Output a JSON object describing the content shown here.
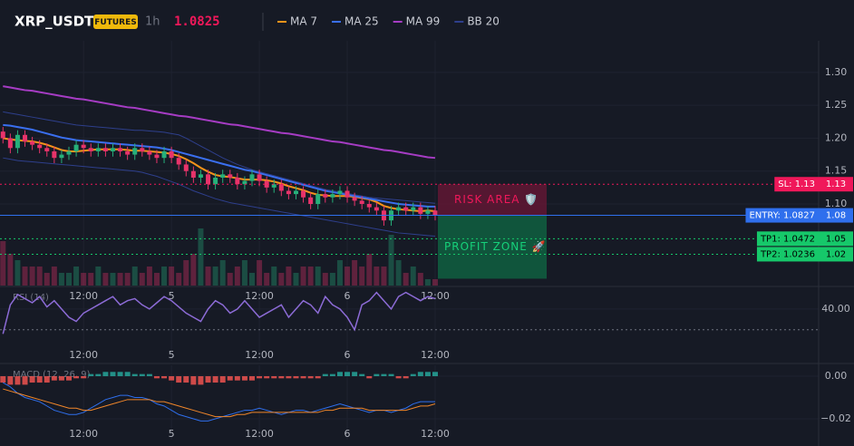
{
  "chart_data": [
    {
      "type": "candlestick",
      "title": "XRP_USDT",
      "badge": "FUTURES",
      "interval": "1h",
      "last_price": "1.0825",
      "categories": [
        null,
        null,
        null,
        null,
        null,
        null,
        null,
        null,
        null,
        null,
        null,
        "12:00",
        null,
        null,
        null,
        null,
        null,
        null,
        null,
        null,
        null,
        null,
        null,
        "5",
        null,
        null,
        null,
        null,
        null,
        null,
        null,
        null,
        null,
        null,
        null,
        "12:00",
        null,
        null,
        null,
        null,
        null,
        null,
        null,
        null,
        null,
        null,
        null,
        "6",
        null,
        null,
        null,
        null,
        null,
        null,
        null,
        null,
        null,
        null,
        null,
        "12:00"
      ],
      "open": [
        1.21,
        1.2,
        1.185,
        1.205,
        1.195,
        1.19,
        1.185,
        1.18,
        1.17,
        1.175,
        1.18,
        1.19,
        1.185,
        1.18,
        1.185,
        1.18,
        1.185,
        1.18,
        1.175,
        1.185,
        1.18,
        1.175,
        1.17,
        1.18,
        1.17,
        1.16,
        1.15,
        1.14,
        1.145,
        1.13,
        1.14,
        1.145,
        1.14,
        1.13,
        1.135,
        1.145,
        1.135,
        1.125,
        1.13,
        1.12,
        1.115,
        1.12,
        1.11,
        1.1,
        1.115,
        1.11,
        1.115,
        1.12,
        1.11,
        1.105,
        1.1,
        1.095,
        1.09,
        1.075,
        1.09,
        1.095,
        1.09,
        1.095,
        1.085,
        1.09
      ],
      "high": [
        1.217,
        1.207,
        1.212,
        1.212,
        1.202,
        1.197,
        1.192,
        1.187,
        1.182,
        1.187,
        1.197,
        1.197,
        1.192,
        1.192,
        1.192,
        1.192,
        1.192,
        1.187,
        1.192,
        1.192,
        1.187,
        1.182,
        1.187,
        1.187,
        1.177,
        1.167,
        1.157,
        1.152,
        1.152,
        1.147,
        1.152,
        1.152,
        1.147,
        1.142,
        1.152,
        1.152,
        1.142,
        1.137,
        1.137,
        1.127,
        1.127,
        1.127,
        1.117,
        1.122,
        1.122,
        1.122,
        1.127,
        1.127,
        1.117,
        1.112,
        1.107,
        1.102,
        1.097,
        1.097,
        1.102,
        1.102,
        1.102,
        1.102,
        1.097,
        1.097
      ],
      "low": [
        1.192,
        1.177,
        1.177,
        1.187,
        1.182,
        1.177,
        1.172,
        1.162,
        1.162,
        1.167,
        1.172,
        1.177,
        1.172,
        1.172,
        1.172,
        1.172,
        1.172,
        1.167,
        1.167,
        1.172,
        1.167,
        1.162,
        1.162,
        1.162,
        1.152,
        1.142,
        1.132,
        1.132,
        1.122,
        1.122,
        1.132,
        1.132,
        1.122,
        1.122,
        1.127,
        1.127,
        1.117,
        1.117,
        1.112,
        1.107,
        1.107,
        1.102,
        1.092,
        1.092,
        1.102,
        1.102,
        1.107,
        1.102,
        1.097,
        1.092,
        1.087,
        1.082,
        1.067,
        1.067,
        1.082,
        1.082,
        1.082,
        1.077,
        1.077,
        1.075
      ],
      "close": [
        1.2,
        1.185,
        1.205,
        1.195,
        1.19,
        1.185,
        1.18,
        1.17,
        1.175,
        1.18,
        1.19,
        1.185,
        1.18,
        1.185,
        1.18,
        1.185,
        1.18,
        1.175,
        1.185,
        1.18,
        1.175,
        1.17,
        1.18,
        1.17,
        1.16,
        1.15,
        1.14,
        1.145,
        1.13,
        1.14,
        1.145,
        1.14,
        1.13,
        1.135,
        1.145,
        1.135,
        1.125,
        1.13,
        1.12,
        1.115,
        1.12,
        1.11,
        1.1,
        1.115,
        1.11,
        1.115,
        1.12,
        1.11,
        1.105,
        1.1,
        1.095,
        1.09,
        1.075,
        1.09,
        1.095,
        1.09,
        1.095,
        1.085,
        1.09,
        1.0825
      ],
      "up_color": "#26b07a",
      "down_color": "#e8336a",
      "volume": [
        7,
        5,
        4,
        3,
        3,
        3,
        2,
        3,
        2,
        2,
        3,
        2,
        2,
        3,
        2,
        2,
        2,
        2,
        3,
        2,
        3,
        2,
        3,
        3,
        2,
        4,
        5,
        9,
        3,
        3,
        4,
        2,
        3,
        4,
        2,
        4,
        2,
        3,
        2,
        3,
        2,
        3,
        3,
        3,
        2,
        2,
        4,
        3,
        4,
        3,
        5,
        3,
        3,
        8,
        4,
        2,
        3,
        2,
        1,
        1
      ],
      "vlim": [
        0,
        10
      ],
      "series": [
        {
          "name": "MA 7",
          "color": "#f7931a",
          "values": [
            1.2,
            1.198,
            1.197,
            1.196,
            1.195,
            1.193,
            1.19,
            1.186,
            1.182,
            1.18,
            1.18,
            1.181,
            1.182,
            1.183,
            1.183,
            1.183,
            1.183,
            1.182,
            1.181,
            1.181,
            1.18,
            1.179,
            1.178,
            1.176,
            1.173,
            1.168,
            1.162,
            1.155,
            1.149,
            1.144,
            1.142,
            1.141,
            1.139,
            1.137,
            1.137,
            1.137,
            1.136,
            1.134,
            1.131,
            1.127,
            1.124,
            1.121,
            1.117,
            1.114,
            1.113,
            1.112,
            1.112,
            1.112,
            1.111,
            1.109,
            1.107,
            1.103,
            1.097,
            1.094,
            1.092,
            1.091,
            1.09,
            1.089,
            1.09,
            1.089
          ]
        },
        {
          "name": "MA 25",
          "color": "#3a6ff0",
          "values": [
            1.22,
            1.219,
            1.217,
            1.215,
            1.213,
            1.21,
            1.207,
            1.204,
            1.201,
            1.199,
            1.197,
            1.196,
            1.195,
            1.194,
            1.193,
            1.192,
            1.191,
            1.19,
            1.189,
            1.188,
            1.187,
            1.186,
            1.184,
            1.182,
            1.179,
            1.176,
            1.173,
            1.17,
            1.167,
            1.164,
            1.161,
            1.158,
            1.155,
            1.152,
            1.15,
            1.147,
            1.144,
            1.141,
            1.138,
            1.135,
            1.132,
            1.129,
            1.126,
            1.123,
            1.12,
            1.118,
            1.116,
            1.114,
            1.112,
            1.11,
            1.108,
            1.106,
            1.104,
            1.102,
            1.1,
            1.099,
            1.098,
            1.097,
            1.096,
            1.096
          ]
        },
        {
          "name": "MA 99",
          "color": "#a63cc4",
          "values": [
            1.279,
            1.277,
            1.275,
            1.273,
            1.272,
            1.27,
            1.268,
            1.266,
            1.264,
            1.262,
            1.26,
            1.259,
            1.257,
            1.255,
            1.253,
            1.251,
            1.249,
            1.247,
            1.246,
            1.244,
            1.242,
            1.24,
            1.238,
            1.236,
            1.234,
            1.233,
            1.231,
            1.229,
            1.227,
            1.225,
            1.223,
            1.221,
            1.22,
            1.218,
            1.216,
            1.214,
            1.212,
            1.21,
            1.208,
            1.207,
            1.205,
            1.203,
            1.201,
            1.199,
            1.197,
            1.195,
            1.194,
            1.192,
            1.19,
            1.188,
            1.186,
            1.184,
            1.182,
            1.181,
            1.179,
            1.177,
            1.175,
            1.173,
            1.171,
            1.17
          ]
        },
        {
          "name": "BB 20",
          "color": "#2e3f8c",
          "values": [
            1.24,
            1.238,
            1.236,
            1.234,
            1.232,
            1.23,
            1.228,
            1.226,
            1.224,
            1.222,
            1.22,
            1.219,
            1.218,
            1.217,
            1.216,
            1.215,
            1.214,
            1.213,
            1.212,
            1.212,
            1.211,
            1.21,
            1.209,
            1.207,
            1.205,
            1.2,
            1.194,
            1.188,
            1.182,
            1.176,
            1.17,
            1.165,
            1.16,
            1.156,
            1.152,
            1.149,
            1.146,
            1.143,
            1.14,
            1.137,
            1.134,
            1.131,
            1.128,
            1.125,
            1.122,
            1.12,
            1.118,
            1.116,
            1.114,
            1.112,
            1.11,
            1.109,
            1.108,
            1.107,
            1.106,
            1.105,
            1.104,
            1.103,
            1.102,
            1.101
          ],
          "lower": [
            1.17,
            1.168,
            1.166,
            1.165,
            1.164,
            1.163,
            1.162,
            1.161,
            1.16,
            1.159,
            1.158,
            1.157,
            1.156,
            1.155,
            1.154,
            1.153,
            1.152,
            1.151,
            1.15,
            1.148,
            1.145,
            1.142,
            1.138,
            1.134,
            1.13,
            1.125,
            1.12,
            1.116,
            1.112,
            1.108,
            1.105,
            1.102,
            1.1,
            1.098,
            1.096,
            1.094,
            1.092,
            1.09,
            1.088,
            1.086,
            1.084,
            1.082,
            1.08,
            1.078,
            1.076,
            1.074,
            1.072,
            1.07,
            1.068,
            1.066,
            1.064,
            1.062,
            1.06,
            1.058,
            1.056,
            1.055,
            1.054,
            1.053,
            1.052,
            1.051
          ]
        }
      ],
      "ylim": [
        0.976,
        1.348
      ],
      "yticks": [
        {
          "value": 1.1,
          "label": "1.10"
        },
        {
          "value": 1.15,
          "label": "1.15"
        },
        {
          "value": 1.2,
          "label": "1.20"
        },
        {
          "value": 1.25,
          "label": "1.25"
        },
        {
          "value": 1.3,
          "label": "1.30"
        }
      ],
      "stop_loss": {
        "value": 1.13,
        "label": "SL: 1.13",
        "axis_label": "1.13",
        "color": "#f0185a"
      },
      "entry": {
        "value": 1.0827,
        "label": "ENTRY: 1.0827",
        "axis_label": "1.08",
        "color": "#2f6fed"
      },
      "take_profits": [
        {
          "value": 1.0472,
          "label": "TP1: 1.0472",
          "axis_label": "1.05",
          "color": "#16c86a"
        },
        {
          "value": 1.0236,
          "label": "TP2: 1.0236",
          "axis_label": "1.02",
          "color": "#16c86a"
        }
      ],
      "risk_area": "RISK AREA 🛡️",
      "profit_zone": "PROFIT ZONE 🚀"
    },
    {
      "type": "line",
      "title": "RSI (14)",
      "categories": [
        null,
        null,
        null,
        null,
        null,
        null,
        null,
        null,
        null,
        null,
        null,
        "12:00",
        null,
        null,
        null,
        null,
        null,
        null,
        null,
        null,
        null,
        null,
        null,
        "5",
        null,
        null,
        null,
        null,
        null,
        null,
        null,
        null,
        null,
        null,
        null,
        "12:00",
        null,
        null,
        null,
        null,
        null,
        null,
        null,
        null,
        null,
        null,
        null,
        "6",
        null,
        null,
        null,
        null,
        null,
        null,
        null,
        null,
        null,
        null,
        null,
        "12:00"
      ],
      "values": [
        28,
        42,
        47,
        45,
        43,
        46,
        41,
        44,
        40,
        36,
        34,
        38,
        40,
        42,
        44,
        46,
        42,
        44,
        45,
        42,
        40,
        43,
        46,
        44,
        41,
        38,
        36,
        34,
        40,
        44,
        42,
        38,
        40,
        44,
        40,
        36,
        38,
        40,
        42,
        36,
        40,
        44,
        42,
        38,
        46,
        42,
        40,
        36,
        30,
        42,
        44,
        48,
        44,
        40,
        46,
        48,
        46,
        44,
        46,
        45
      ],
      "color": "#8c6bd6",
      "ylim": [
        15,
        50
      ],
      "yticks": [
        {
          "value": 40,
          "label": "40.00"
        }
      ],
      "hline": 30
    },
    {
      "type": "bar",
      "title": "MACD (12, 26, 9)",
      "categories": [
        null,
        null,
        null,
        null,
        null,
        null,
        null,
        null,
        null,
        null,
        null,
        "12:00",
        null,
        null,
        null,
        null,
        null,
        null,
        null,
        null,
        null,
        null,
        null,
        "5",
        null,
        null,
        null,
        null,
        null,
        null,
        null,
        null,
        null,
        null,
        null,
        "12:00",
        null,
        null,
        null,
        null,
        null,
        null,
        null,
        null,
        null,
        null,
        null,
        "6",
        null,
        null,
        null,
        null,
        null,
        null,
        null,
        null,
        null,
        null,
        null,
        "12:00"
      ],
      "values": [
        -0.003,
        -0.004,
        -0.004,
        -0.004,
        -0.003,
        -0.003,
        -0.003,
        -0.002,
        -0.002,
        -0.002,
        -0.001,
        -0.001,
        0.001,
        0.001,
        0.002,
        0.002,
        0.002,
        0.002,
        0.001,
        0.001,
        0.001,
        -0.001,
        -0.001,
        -0.002,
        -0.003,
        -0.003,
        -0.004,
        -0.004,
        -0.003,
        -0.003,
        -0.003,
        -0.002,
        -0.002,
        -0.002,
        -0.002,
        -0.001,
        -0.001,
        -0.001,
        -0.001,
        -0.001,
        -0.001,
        -0.001,
        -0.001,
        -0.001,
        0.001,
        0.001,
        0.002,
        0.002,
        0.002,
        0.001,
        -0.001,
        0.001,
        0.001,
        0.001,
        -0.001,
        -0.001,
        0.001,
        0.002,
        0.002,
        0.002
      ],
      "up_color": "#26a69a",
      "down_color": "#ef5350",
      "series": [
        {
          "color": "#2f6fed",
          "values": [
            -0.003,
            -0.005,
            -0.008,
            -0.01,
            -0.011,
            -0.012,
            -0.014,
            -0.016,
            -0.017,
            -0.018,
            -0.018,
            -0.017,
            -0.015,
            -0.013,
            -0.011,
            -0.01,
            -0.009,
            -0.009,
            -0.01,
            -0.01,
            -0.011,
            -0.013,
            -0.014,
            -0.016,
            -0.018,
            -0.019,
            -0.02,
            -0.021,
            -0.021,
            -0.02,
            -0.019,
            -0.018,
            -0.017,
            -0.016,
            -0.016,
            -0.015,
            -0.016,
            -0.017,
            -0.018,
            -0.017,
            -0.016,
            -0.016,
            -0.017,
            -0.016,
            -0.015,
            -0.014,
            -0.013,
            -0.014,
            -0.015,
            -0.016,
            -0.017,
            -0.016,
            -0.016,
            -0.017,
            -0.016,
            -0.015,
            -0.013,
            -0.012,
            -0.012,
            -0.012
          ]
        },
        {
          "color": "#f0862a",
          "values": [
            -0.006,
            -0.007,
            -0.008,
            -0.009,
            -0.01,
            -0.011,
            -0.012,
            -0.013,
            -0.014,
            -0.015,
            -0.015,
            -0.016,
            -0.016,
            -0.015,
            -0.014,
            -0.013,
            -0.012,
            -0.011,
            -0.011,
            -0.011,
            -0.011,
            -0.012,
            -0.012,
            -0.013,
            -0.014,
            -0.015,
            -0.016,
            -0.017,
            -0.018,
            -0.019,
            -0.019,
            -0.019,
            -0.018,
            -0.018,
            -0.017,
            -0.017,
            -0.017,
            -0.017,
            -0.017,
            -0.017,
            -0.017,
            -0.017,
            -0.017,
            -0.017,
            -0.016,
            -0.016,
            -0.015,
            -0.015,
            -0.015,
            -0.015,
            -0.016,
            -0.016,
            -0.016,
            -0.016,
            -0.016,
            -0.016,
            -0.015,
            -0.014,
            -0.014,
            -0.013
          ]
        }
      ],
      "ylim": [
        -0.0298,
        0.0051
      ],
      "yticks": [
        {
          "value": -0.02,
          "label": "−0.02"
        },
        {
          "value": 0,
          "label": "0.00"
        }
      ]
    }
  ]
}
